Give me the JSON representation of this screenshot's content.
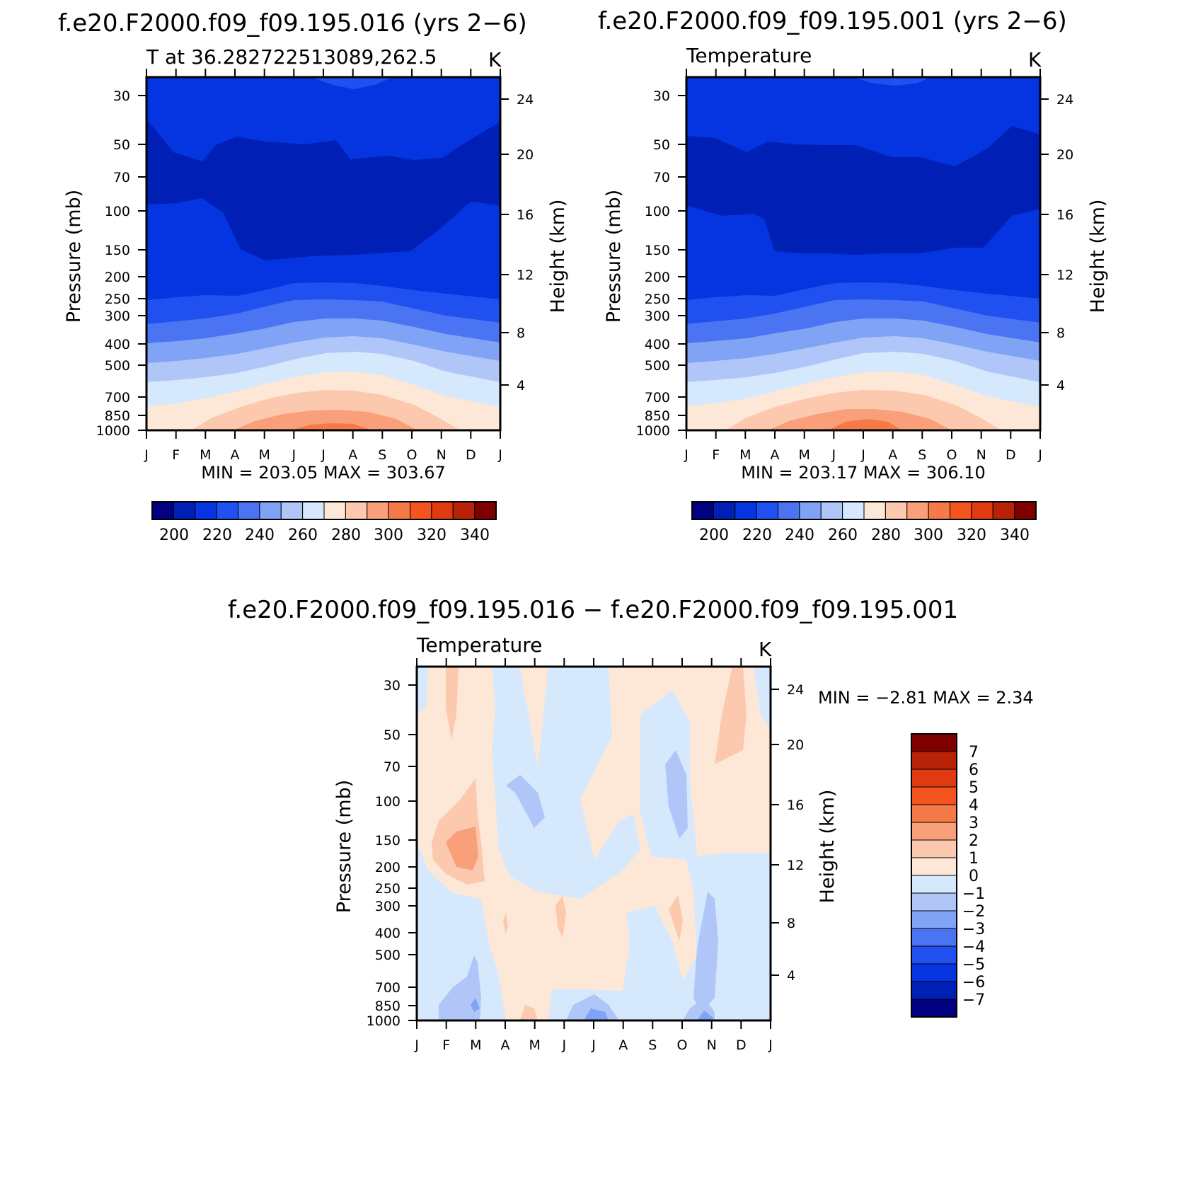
{
  "colors": {
    "levels": [
      "#000080",
      "#0020b5",
      "#0535e0",
      "#2050f0",
      "#4a74f2",
      "#80a3f5",
      "#b0c6f8",
      "#d6e8fb",
      "#fde8d8",
      "#fcc9ae",
      "#f9a07a",
      "#f57a48",
      "#f5541e",
      "#e03a10",
      "#b82308",
      "#800000"
    ]
  },
  "panels": [
    {
      "id": "p1",
      "title": "f.e20.F2000.f09_f09.195.016 (yrs 2−6)",
      "left_label": "T at 36.282722513089,262.5",
      "units": "K",
      "ylabel": "Pressure (mb)",
      "ylabel_right": "Height (km)",
      "minmax": "MIN = 203.05 MAX = 303.67",
      "colorbar_labels": [
        "200",
        "220",
        "240",
        "260",
        "280",
        "300",
        "320",
        "340"
      ]
    },
    {
      "id": "p2",
      "title": "f.e20.F2000.f09_f09.195.001 (yrs 2−6)",
      "left_label": "Temperature",
      "units": "K",
      "ylabel": "Pressure (mb)",
      "ylabel_right": "Height (km)",
      "minmax": "MIN = 203.17 MAX = 306.10",
      "colorbar_labels": [
        "200",
        "220",
        "240",
        "260",
        "280",
        "300",
        "320",
        "340"
      ]
    },
    {
      "id": "p3",
      "title": "f.e20.F2000.f09_f09.195.016 − f.e20.F2000.f09_f09.195.001",
      "left_label": "Temperature",
      "units": "K",
      "ylabel": "Pressure (mb)",
      "ylabel_right": "Height (km)",
      "minmax": "MIN = −2.81 MAX = 2.34",
      "colorbar_labels": [
        "7",
        "6",
        "5",
        "4",
        "3",
        "2",
        "1",
        "0",
        "−1",
        "−2",
        "−3",
        "−4",
        "−5",
        "−6",
        "−7"
      ]
    }
  ],
  "chart_data": [
    {
      "type": "heatmap",
      "title": "f.e20.F2000.f09_f09.195.016 (yrs 2−6)",
      "xlabel": "",
      "ylabel": "Pressure (mb)",
      "y2label": "Height (km)",
      "x_ticks": [
        "J",
        "F",
        "M",
        "A",
        "M",
        "J",
        "J",
        "A",
        "S",
        "O",
        "N",
        "D",
        "J"
      ],
      "y_ticks": [
        30,
        50,
        70,
        100,
        150,
        200,
        250,
        300,
        400,
        500,
        700,
        850,
        1000
      ],
      "y2_ticks": [
        24,
        20,
        16,
        12,
        8,
        4
      ],
      "contour_levels_K": [
        200,
        210,
        220,
        230,
        240,
        250,
        260,
        270,
        280,
        290,
        300,
        310,
        320,
        330,
        340
      ],
      "min": 203.05,
      "max": 303.67,
      "isotherms_K": [
        {
          "level": 210,
          "pressure_mb": [
            38,
            48,
            54,
            60,
            53,
            50,
            53,
            54,
            58,
            55,
            50,
            42,
            35
          ]
        },
        {
          "level": 220,
          "pressure_mb": [
            95,
            92,
            88,
            140,
            175,
            168,
            162,
            160,
            158,
            152,
            140,
            110,
            95
          ]
        },
        {
          "level": 230,
          "pressure_mb": [
            255,
            248,
            240,
            238,
            228,
            212,
            205,
            208,
            212,
            222,
            235,
            245,
            255
          ]
        },
        {
          "level": 240,
          "pressure_mb": [
            330,
            320,
            312,
            300,
            285,
            265,
            255,
            255,
            262,
            278,
            300,
            318,
            330
          ]
        },
        {
          "level": 250,
          "pressure_mb": [
            405,
            398,
            385,
            370,
            350,
            330,
            315,
            318,
            325,
            345,
            370,
            390,
            405
          ]
        },
        {
          "level": 260,
          "pressure_mb": [
            490,
            482,
            470,
            455,
            435,
            415,
            400,
            402,
            412,
            430,
            455,
            475,
            490
          ]
        },
        {
          "level": 270,
          "pressure_mb": [
            610,
            600,
            585,
            560,
            535,
            515,
            500,
            502,
            512,
            535,
            565,
            590,
            610
          ]
        },
        {
          "level": 280,
          "pressure_mb": [
            820,
            800,
            760,
            720,
            685,
            665,
            655,
            658,
            668,
            690,
            730,
            775,
            820
          ]
        },
        {
          "level": 290,
          "pressure_mb": [
            1000,
            1000,
            985,
            920,
            860,
            820,
            805,
            808,
            822,
            860,
            930,
            990,
            1000
          ]
        },
        {
          "level": 300,
          "pressure_mb": [
            1000,
            1000,
            1000,
            1000,
            975,
            945,
            930,
            935,
            950,
            985,
            1000,
            1000,
            1000
          ]
        }
      ]
    },
    {
      "type": "heatmap",
      "title": "f.e20.F2000.f09_f09.195.001 (yrs 2−6)",
      "xlabel": "",
      "ylabel": "Pressure (mb)",
      "y2label": "Height (km)",
      "x_ticks": [
        "J",
        "F",
        "M",
        "A",
        "M",
        "J",
        "J",
        "A",
        "S",
        "O",
        "N",
        "D",
        "J"
      ],
      "y_ticks": [
        30,
        50,
        70,
        100,
        150,
        200,
        250,
        300,
        400,
        500,
        700,
        850,
        1000
      ],
      "y2_ticks": [
        24,
        20,
        16,
        12,
        8,
        4
      ],
      "contour_levels_K": [
        200,
        210,
        220,
        230,
        240,
        250,
        260,
        270,
        280,
        290,
        300,
        310,
        320,
        330,
        340
      ],
      "min": 203.17,
      "max": 306.1,
      "isotherms_K": [
        {
          "level": 210,
          "pressure_mb": [
            45,
            47,
            52,
            50,
            48,
            48,
            51,
            53,
            55,
            57,
            50,
            40,
            46
          ]
        },
        {
          "level": 220,
          "pressure_mb": [
            96,
            98,
            105,
            102,
            160,
            165,
            168,
            165,
            168,
            152,
            155,
            120,
            96
          ]
        },
        {
          "level": 230,
          "pressure_mb": [
            250,
            245,
            242,
            238,
            230,
            215,
            205,
            208,
            215,
            225,
            238,
            245,
            250
          ]
        },
        {
          "level": 240,
          "pressure_mb": [
            330,
            320,
            312,
            300,
            285,
            265,
            255,
            255,
            262,
            278,
            300,
            318,
            330
          ]
        },
        {
          "level": 250,
          "pressure_mb": [
            405,
            398,
            385,
            370,
            350,
            330,
            315,
            318,
            325,
            345,
            370,
            390,
            405
          ]
        },
        {
          "level": 260,
          "pressure_mb": [
            490,
            482,
            470,
            455,
            435,
            415,
            400,
            402,
            412,
            430,
            455,
            475,
            490
          ]
        },
        {
          "level": 270,
          "pressure_mb": [
            610,
            600,
            585,
            560,
            535,
            515,
            500,
            502,
            512,
            535,
            565,
            590,
            610
          ]
        },
        {
          "level": 280,
          "pressure_mb": [
            820,
            800,
            760,
            720,
            685,
            665,
            655,
            658,
            668,
            690,
            730,
            775,
            820
          ]
        },
        {
          "level": 290,
          "pressure_mb": [
            1000,
            1000,
            980,
            915,
            855,
            815,
            800,
            805,
            820,
            858,
            925,
            985,
            1000
          ]
        },
        {
          "level": 300,
          "pressure_mb": [
            1000,
            1000,
            1000,
            1000,
            970,
            935,
            915,
            920,
            945,
            980,
            1000,
            1000,
            1000
          ]
        }
      ]
    },
    {
      "type": "heatmap",
      "title": "f.e20.F2000.f09_f09.195.016 − f.e20.F2000.f09_f09.195.001",
      "xlabel": "",
      "ylabel": "Pressure (mb)",
      "y2label": "Height (km)",
      "x_ticks": [
        "J",
        "F",
        "M",
        "A",
        "M",
        "J",
        "J",
        "A",
        "S",
        "O",
        "N",
        "D",
        "J"
      ],
      "y_ticks": [
        30,
        50,
        70,
        100,
        150,
        200,
        250,
        300,
        400,
        500,
        700,
        850,
        1000
      ],
      "y2_ticks": [
        24,
        20,
        16,
        12,
        8,
        4
      ],
      "contour_levels_K": [
        -7,
        -6,
        -5,
        -4,
        -3,
        -2,
        -1,
        0,
        1,
        2,
        3,
        4,
        5,
        6,
        7
      ],
      "min": -2.81,
      "max": 2.34,
      "features": [
        {
          "sign": "positive",
          "value_K": 1,
          "region": "large upper-level and mid-level areas (Jan–Mar, Jun–Sep, Nov–Dec)"
        },
        {
          "sign": "positive",
          "value_K": 2,
          "region": "Feb–Mar near 150–250 mb; Dec near 30–80 mb"
        },
        {
          "sign": "negative",
          "value_K": -1,
          "region": "Mar–Jul columns aloft; Oct–Dec mid-levels; Jun–Oct near surface"
        },
        {
          "sign": "negative",
          "value_K": -2,
          "region": "Apr near 100–200 mb; Oct near 80–150 mb; Nov near 300–700 mb"
        },
        {
          "sign": "negative",
          "value_K": -3,
          "region": "Jul and Nov near 900–1000 mb"
        }
      ]
    }
  ]
}
